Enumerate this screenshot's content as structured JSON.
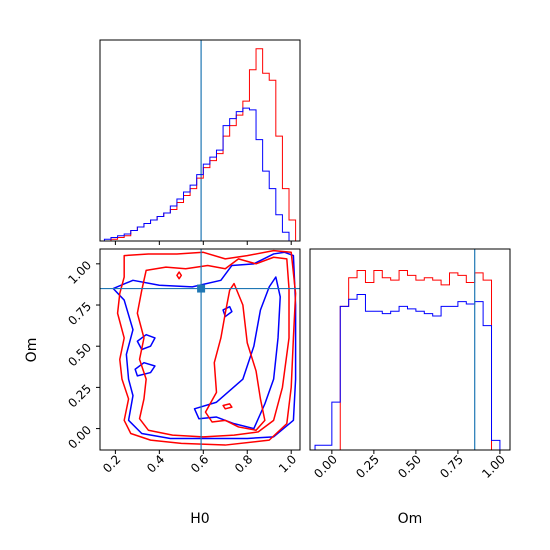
{
  "chart_data": [
    {
      "type": "histogram",
      "panel": "top-left",
      "parameter": "H0",
      "xlim": [
        0.13,
        1.04
      ],
      "bin_edges": [
        0.15,
        0.18,
        0.21,
        0.24,
        0.27,
        0.3,
        0.33,
        0.36,
        0.39,
        0.42,
        0.45,
        0.48,
        0.51,
        0.54,
        0.57,
        0.6,
        0.63,
        0.66,
        0.69,
        0.72,
        0.75,
        0.78,
        0.81,
        0.84,
        0.87,
        0.9,
        0.93,
        0.96,
        0.99,
        1.02
      ],
      "series": [
        {
          "color": "#ff0000",
          "counts": [
            0,
            1,
            2,
            3,
            6,
            8,
            10,
            12,
            14,
            16,
            18,
            22,
            26,
            30,
            36,
            42,
            46,
            50,
            60,
            66,
            72,
            80,
            98,
            110,
            96,
            92,
            60,
            30,
            12
          ]
        },
        {
          "color": "#0000ff",
          "counts": [
            1,
            2,
            3,
            4,
            6,
            8,
            10,
            12,
            14,
            16,
            20,
            24,
            28,
            32,
            38,
            44,
            48,
            52,
            66,
            70,
            74,
            76,
            75,
            58,
            40,
            30,
            15,
            5,
            0
          ]
        }
      ],
      "truth_line": {
        "x": 0.59,
        "color": "#1f77b4"
      },
      "ylim": [
        0,
        115
      ],
      "tick_labels": []
    },
    {
      "type": "contour",
      "panel": "bottom-left",
      "xlabel": "H0",
      "ylabel": "Om",
      "xlim": [
        0.13,
        1.04
      ],
      "ylim": [
        -0.13,
        1.09
      ],
      "xticks": [
        0.2,
        0.4,
        0.6,
        0.8,
        1.0
      ],
      "xtick_labels": [
        "0.2",
        "0.4",
        "0.6",
        "0.8",
        "1.0"
      ],
      "yticks": [
        0.0,
        0.25,
        0.5,
        0.75,
        1.0
      ],
      "ytick_labels": [
        "0.00",
        "0.25",
        "0.50",
        "0.75",
        "1.00"
      ],
      "truth_point": {
        "x": 0.59,
        "y": 0.85,
        "color": "#1f77b4"
      },
      "contours": [
        {
          "color": "#0000ff",
          "points": [
            [
              0.19,
              0.85
            ],
            [
              0.28,
              0.9
            ],
            [
              0.4,
              0.87
            ],
            [
              0.55,
              0.86
            ],
            [
              0.68,
              0.9
            ],
            [
              0.73,
              0.99
            ],
            [
              0.83,
              1.0
            ],
            [
              0.92,
              1.06
            ],
            [
              0.97,
              1.07
            ],
            [
              1.01,
              1.05
            ],
            [
              1.02,
              0.75
            ],
            [
              1.02,
              0.3
            ],
            [
              1.01,
              0.05
            ],
            [
              0.92,
              -0.05
            ],
            [
              0.8,
              -0.06
            ],
            [
              0.62,
              -0.06
            ],
            [
              0.45,
              -0.06
            ],
            [
              0.32,
              -0.03
            ],
            [
              0.26,
              0.05
            ],
            [
              0.28,
              0.2
            ],
            [
              0.26,
              0.3
            ],
            [
              0.25,
              0.45
            ],
            [
              0.28,
              0.6
            ],
            [
              0.24,
              0.78
            ],
            [
              0.19,
              0.85
            ]
          ]
        },
        {
          "color": "#0000ff",
          "points": [
            [
              0.56,
              0.12
            ],
            [
              0.66,
              0.16
            ],
            [
              0.78,
              0.3
            ],
            [
              0.83,
              0.5
            ],
            [
              0.86,
              0.72
            ],
            [
              0.9,
              0.86
            ],
            [
              0.93,
              0.92
            ],
            [
              0.95,
              0.8
            ],
            [
              0.94,
              0.55
            ],
            [
              0.92,
              0.3
            ],
            [
              0.88,
              0.15
            ],
            [
              0.83,
              0.0
            ],
            [
              0.74,
              0.03
            ],
            [
              0.66,
              0.07
            ],
            [
              0.58,
              0.06
            ],
            [
              0.56,
              0.12
            ]
          ]
        },
        {
          "color": "#0000ff",
          "points": [
            [
              0.32,
              0.48
            ],
            [
              0.36,
              0.5
            ],
            [
              0.38,
              0.55
            ],
            [
              0.34,
              0.57
            ],
            [
              0.3,
              0.53
            ],
            [
              0.32,
              0.48
            ]
          ]
        },
        {
          "color": "#0000ff",
          "points": [
            [
              0.3,
              0.32
            ],
            [
              0.36,
              0.34
            ],
            [
              0.38,
              0.38
            ],
            [
              0.33,
              0.4
            ],
            [
              0.29,
              0.36
            ],
            [
              0.3,
              0.32
            ]
          ]
        },
        {
          "color": "#0000ff",
          "points": [
            [
              0.7,
              0.68
            ],
            [
              0.73,
              0.71
            ],
            [
              0.72,
              0.74
            ],
            [
              0.69,
              0.72
            ],
            [
              0.7,
              0.68
            ]
          ]
        },
        {
          "color": "#ff0000",
          "points": [
            [
              0.24,
              1.05
            ],
            [
              0.35,
              1.06
            ],
            [
              0.48,
              1.06
            ],
            [
              0.6,
              1.07
            ],
            [
              0.7,
              1.03
            ],
            [
              0.8,
              1.05
            ],
            [
              0.92,
              1.08
            ],
            [
              1.0,
              1.07
            ],
            [
              1.02,
              0.82
            ],
            [
              1.01,
              0.55
            ],
            [
              1.0,
              0.25
            ],
            [
              0.98,
              0.03
            ],
            [
              0.9,
              -0.07
            ],
            [
              0.7,
              -0.1
            ],
            [
              0.5,
              -0.09
            ],
            [
              0.36,
              -0.07
            ],
            [
              0.27,
              -0.03
            ],
            [
              0.24,
              0.05
            ],
            [
              0.26,
              0.18
            ],
            [
              0.23,
              0.3
            ],
            [
              0.22,
              0.42
            ],
            [
              0.24,
              0.55
            ],
            [
              0.21,
              0.7
            ],
            [
              0.22,
              0.82
            ],
            [
              0.24,
              0.92
            ],
            [
              0.24,
              1.05
            ]
          ]
        },
        {
          "color": "#ff0000",
          "points": [
            [
              0.34,
              0.96
            ],
            [
              0.43,
              0.98
            ],
            [
              0.52,
              0.97
            ],
            [
              0.62,
              0.99
            ],
            [
              0.7,
              0.97
            ],
            [
              0.76,
              1.03
            ],
            [
              0.84,
              1.0
            ],
            [
              0.92,
              1.04
            ],
            [
              0.98,
              1.03
            ],
            [
              0.99,
              0.85
            ],
            [
              0.99,
              0.55
            ],
            [
              0.96,
              0.25
            ],
            [
              0.92,
              0.05
            ],
            [
              0.85,
              -0.02
            ],
            [
              0.74,
              -0.04
            ],
            [
              0.6,
              -0.05
            ],
            [
              0.46,
              -0.04
            ],
            [
              0.35,
              -0.01
            ],
            [
              0.31,
              0.06
            ],
            [
              0.33,
              0.18
            ],
            [
              0.34,
              0.3
            ],
            [
              0.31,
              0.42
            ],
            [
              0.33,
              0.55
            ],
            [
              0.3,
              0.7
            ],
            [
              0.32,
              0.84
            ],
            [
              0.34,
              0.96
            ]
          ]
        },
        {
          "color": "#ff0000",
          "points": [
            [
              0.61,
              0.1
            ],
            [
              0.66,
              0.22
            ],
            [
              0.65,
              0.4
            ],
            [
              0.68,
              0.55
            ],
            [
              0.7,
              0.7
            ],
            [
              0.72,
              0.84
            ],
            [
              0.74,
              0.88
            ],
            [
              0.78,
              0.75
            ],
            [
              0.8,
              0.52
            ],
            [
              0.84,
              0.35
            ],
            [
              0.86,
              0.18
            ],
            [
              0.88,
              0.05
            ],
            [
              0.84,
              -0.01
            ],
            [
              0.76,
              0.01
            ],
            [
              0.7,
              0.05
            ],
            [
              0.64,
              0.04
            ],
            [
              0.61,
              0.1
            ]
          ]
        },
        {
          "color": "#ff0000",
          "points": [
            [
              0.7,
              0.12
            ],
            [
              0.73,
              0.13
            ],
            [
              0.72,
              0.15
            ],
            [
              0.69,
              0.14
            ],
            [
              0.7,
              0.12
            ]
          ]
        },
        {
          "color": "#ff0000",
          "points": [
            [
              0.49,
              0.91
            ],
            [
              0.5,
              0.93
            ],
            [
              0.49,
              0.95
            ],
            [
              0.48,
              0.93
            ],
            [
              0.49,
              0.91
            ]
          ]
        }
      ]
    },
    {
      "type": "histogram",
      "panel": "bottom-right",
      "parameter": "Om",
      "xlabel": "Om",
      "xlim": [
        -0.13,
        1.06
      ],
      "xticks": [
        0.0,
        0.25,
        0.5,
        0.75,
        1.0
      ],
      "xtick_labels": [
        "0.00",
        "0.25",
        "0.50",
        "0.75",
        "1.00"
      ],
      "bin_edges": [
        -0.1,
        -0.05,
        0.0,
        0.05,
        0.1,
        0.15,
        0.2,
        0.25,
        0.3,
        0.35,
        0.4,
        0.45,
        0.5,
        0.55,
        0.6,
        0.65,
        0.7,
        0.75,
        0.8,
        0.85,
        0.9,
        0.95,
        1.0
      ],
      "series": [
        {
          "color": "#ff0000",
          "counts": [
            0,
            0,
            0,
            60,
            72,
            75,
            70,
            75,
            72,
            71,
            75,
            73,
            71,
            72,
            71,
            69,
            74,
            73,
            70,
            74,
            71,
            0
          ]
        },
        {
          "color": "#0000ff",
          "counts": [
            2,
            2,
            20,
            60,
            63,
            65,
            58,
            58,
            57,
            58,
            60,
            59,
            58,
            57,
            56,
            60,
            60,
            62,
            61,
            62,
            52,
            4
          ]
        }
      ],
      "truth_line": {
        "x": 0.85,
        "color": "#1f77b4"
      },
      "ylim": [
        0,
        84
      ]
    }
  ]
}
